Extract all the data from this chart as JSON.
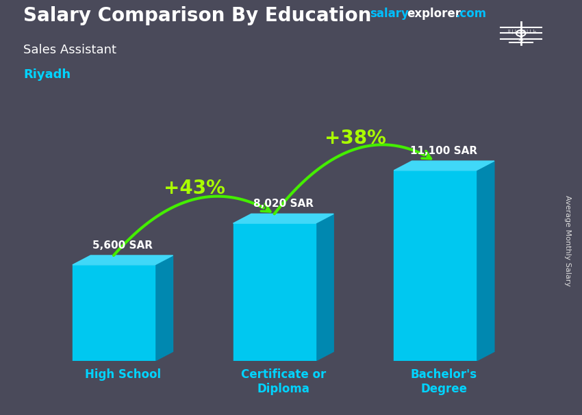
{
  "title": "Salary Comparison By Education",
  "subtitle": "Sales Assistant",
  "city": "Riyadh",
  "ylabel": "Average Monthly Salary",
  "categories": [
    "High School",
    "Certificate or\nDiploma",
    "Bachelor's\nDegree"
  ],
  "values": [
    5600,
    8020,
    11100
  ],
  "value_labels": [
    "5,600 SAR",
    "8,020 SAR",
    "11,100 SAR"
  ],
  "pct_labels": [
    "+43%",
    "+38%"
  ],
  "bar_color_face": "#00c8f0",
  "bar_color_top": "#40d8f8",
  "bar_color_side": "#0088b0",
  "arrow_color": "#44ee00",
  "pct_color": "#aaff00",
  "title_color": "#ffffff",
  "subtitle_color": "#ffffff",
  "city_color": "#00d4ff",
  "watermark_salary_color": "#00c0ff",
  "watermark_explorer_color": "#ffffff",
  "watermark_com_color": "#00c0ff",
  "ylabel_color": "#dddddd",
  "value_label_color": "#ffffff",
  "xlabel_color": "#00d4ff",
  "bg_color": "#4a4a5a",
  "flag_bg": "#2d9e3a",
  "figsize": [
    8.5,
    6.06
  ],
  "dpi": 100,
  "x_positions": [
    0.9,
    2.5,
    4.1
  ],
  "bar_width": 0.82,
  "ylim_max": 14500
}
